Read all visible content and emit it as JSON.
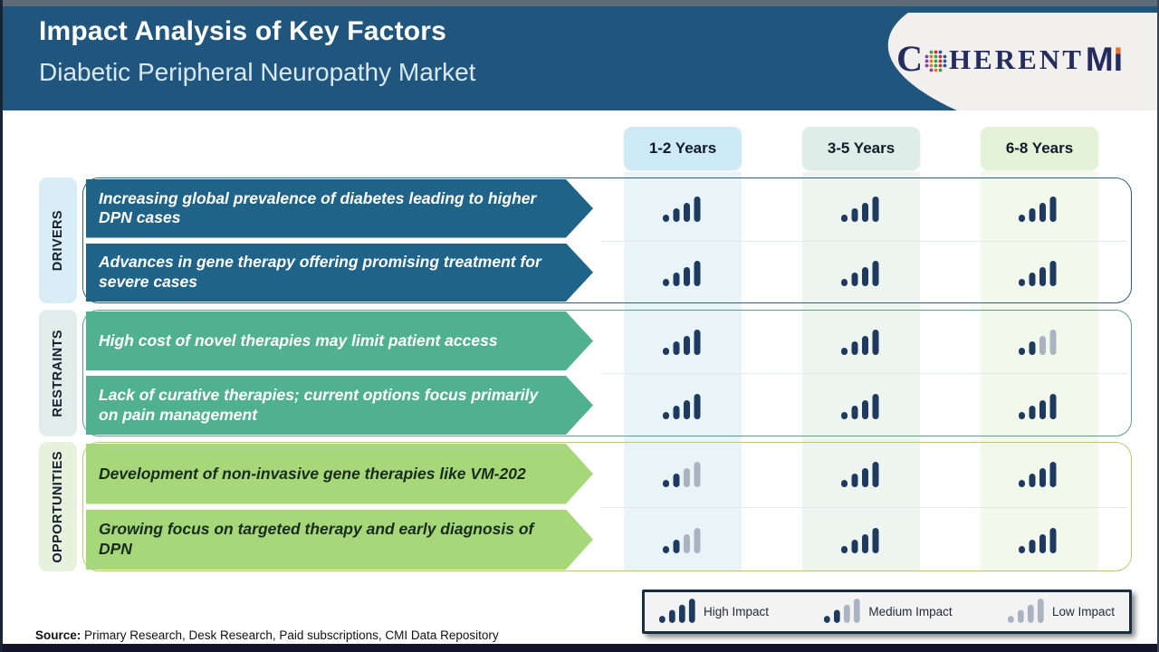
{
  "slide": {
    "title": "Impact Analysis of Key Factors",
    "subtitle": "Diabetic Peripheral Neuropathy Market",
    "source_label": "Source:",
    "source_text": " Primary Research, Desk Research, Paid subscriptions, CMI Data Repository"
  },
  "logo": {
    "c": "C",
    "herent": "HERENT",
    "m": "M",
    "i": "I",
    "navy": "#262d5e",
    "orange": "#e4702d",
    "panel_bg": "#f1f0ee",
    "globe_dot_colors": [
      "#3a9e49",
      "#c4322e",
      "#2b52a0",
      "#8a3f9e",
      "#e07b28"
    ]
  },
  "header_bg": "#20567d",
  "columns": [
    {
      "label": "1-2 Years",
      "header_bg": "#cdeaf6",
      "strip_bg": "#e9f4f9"
    },
    {
      "label": "3-5 Years",
      "header_bg": "#dfede8",
      "strip_bg": "#eef5f1"
    },
    {
      "label": "6-8 Years",
      "header_bg": "#e4f3d8",
      "strip_bg": "#f2f8ec"
    }
  ],
  "groups": [
    {
      "category": "DRIVERS",
      "label_bg": "#d9edf7",
      "arrow_bg": "#206389",
      "arrow_text_color": "#ffffff",
      "border_color": "#2e6079",
      "rows": [
        {
          "text": "Increasing global prevalence of diabetes leading to higher DPN cases",
          "impacts": [
            "high",
            "high",
            "high"
          ]
        },
        {
          "text": "Advances in gene therapy offering promising treatment for severe cases",
          "impacts": [
            "high",
            "high",
            "high"
          ]
        }
      ]
    },
    {
      "category": "RESTRAINTS",
      "label_bg": "#e0edea",
      "arrow_bg": "#50b191",
      "arrow_text_color": "#ffffff",
      "border_color": "#57a287",
      "rows": [
        {
          "text": "High cost of novel therapies may limit patient access",
          "impacts": [
            "high",
            "high",
            "medium"
          ]
        },
        {
          "text": "Lack of curative therapies; current options focus primarily on pain management",
          "impacts": [
            "high",
            "high",
            "high"
          ]
        }
      ]
    },
    {
      "category": "OPPORTUNITIES",
      "label_bg": "#e6f2db",
      "arrow_bg": "#a6d87a",
      "arrow_text_color": "#1a2b1e",
      "border_color": "#b8c96f",
      "rows": [
        {
          "text": "Development of non-invasive gene therapies like VM-202",
          "impacts": [
            "medium",
            "high",
            "high"
          ]
        },
        {
          "text": "Growing focus on targeted therapy and early diagnosis of DPN",
          "impacts": [
            "medium",
            "high",
            "high"
          ]
        }
      ]
    }
  ],
  "legend": [
    {
      "label": "High Impact",
      "type": "high"
    },
    {
      "label": "Medium Impact",
      "type": "medium"
    },
    {
      "label": "Low Impact",
      "type": "low"
    }
  ],
  "impact_colors": {
    "dark": "#1e3a5e",
    "gray": "#a9b4c0"
  }
}
